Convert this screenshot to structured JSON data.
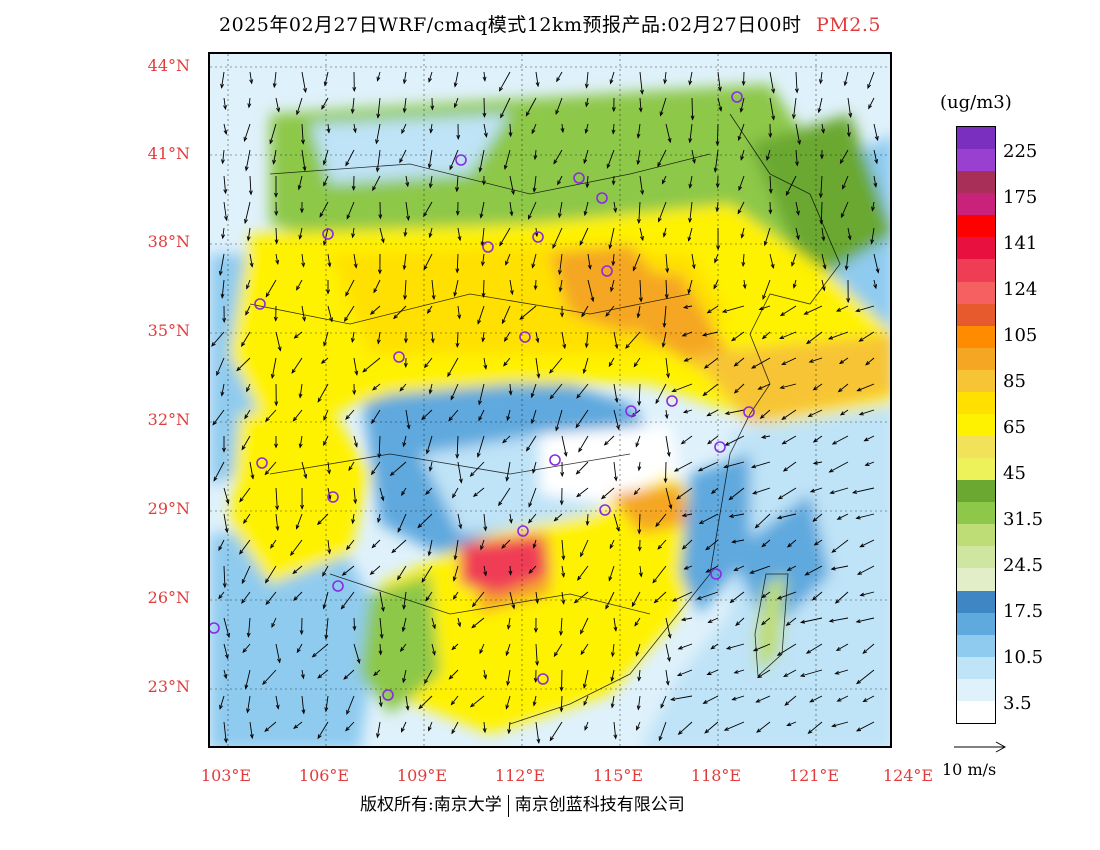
{
  "title": {
    "main": "2025年02月27日WRF/cmaq模式12km预报产品:02月27日00时",
    "pollutant": "PM2.5"
  },
  "axes": {
    "lat_labels": [
      "44°N",
      "41°N",
      "38°N",
      "35°N",
      "32°N",
      "29°N",
      "26°N",
      "23°N"
    ],
    "lon_labels": [
      "103°E",
      "106°E",
      "109°E",
      "112°E",
      "115°E",
      "118°E",
      "121°E",
      "124°E"
    ]
  },
  "legend": {
    "units": "(ug/m3)",
    "labels": [
      "225",
      "175",
      "141",
      "124",
      "105",
      "85",
      "65",
      "45",
      "31.5",
      "24.5",
      "17.5",
      "10.5",
      "3.5"
    ],
    "colors": [
      "#7b2fbf",
      "#9a40d0",
      "#a83058",
      "#c8227a",
      "#ff0000",
      "#e8103f",
      "#f03d56",
      "#f76060",
      "#e65a2e",
      "#ff8c00",
      "#f5a623",
      "#f7c436",
      "#ffe000",
      "#fff200",
      "#f2e25a",
      "#eef25a",
      "#6aa832",
      "#8dc84a",
      "#bedd77",
      "#cfe6a0",
      "#e2eec8",
      "#3f87c4",
      "#5ea9de",
      "#8fcbef",
      "#bfe3f7",
      "#dff1fb",
      "#ffffff"
    ]
  },
  "wind_reference": {
    "label": "10 m/s"
  },
  "footer": {
    "left": "版权所有:南京大学",
    "right": "南京创蓝科技有限公司"
  }
}
